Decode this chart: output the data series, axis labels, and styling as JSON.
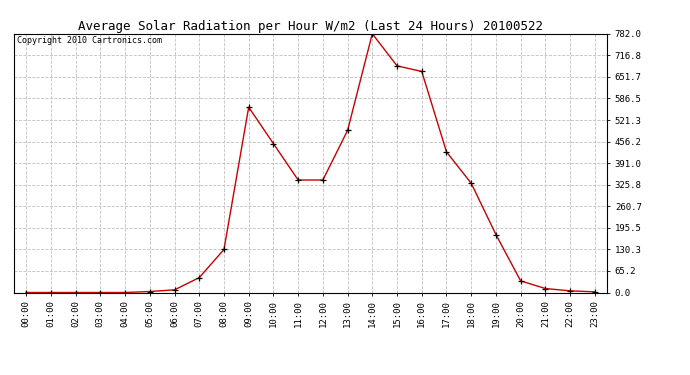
{
  "title": "Average Solar Radiation per Hour W/m2 (Last 24 Hours) 20100522",
  "copyright": "Copyright 2010 Cartronics.com",
  "hours": [
    "00:00",
    "01:00",
    "02:00",
    "03:00",
    "04:00",
    "05:00",
    "06:00",
    "07:00",
    "08:00",
    "09:00",
    "10:00",
    "11:00",
    "12:00",
    "13:00",
    "14:00",
    "15:00",
    "16:00",
    "17:00",
    "18:00",
    "19:00",
    "20:00",
    "21:00",
    "22:00",
    "23:00"
  ],
  "values": [
    0,
    0,
    0,
    0,
    0,
    3,
    8,
    45,
    130,
    560,
    450,
    340,
    340,
    490,
    782,
    685,
    668,
    425,
    330,
    175,
    35,
    12,
    5,
    2
  ],
  "line_color": "#cc0000",
  "marker": "+",
  "marker_color": "#000000",
  "background_color": "#ffffff",
  "grid_color": "#c0c0c0",
  "ylim": [
    0,
    782.0
  ],
  "yticks": [
    0.0,
    65.2,
    130.3,
    195.5,
    260.7,
    325.8,
    391.0,
    456.2,
    521.3,
    586.5,
    651.7,
    716.8,
    782.0
  ],
  "title_fontsize": 9,
  "copyright_fontsize": 6,
  "tick_fontsize": 6.5,
  "figwidth": 6.9,
  "figheight": 3.75,
  "dpi": 100
}
